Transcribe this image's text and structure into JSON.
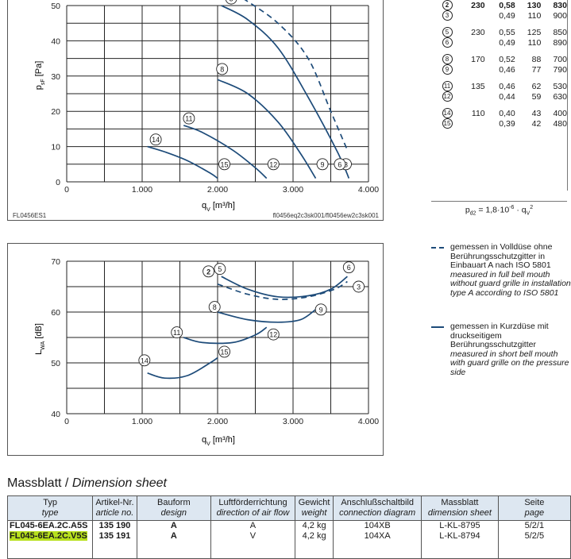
{
  "chart_data": [
    {
      "type": "line",
      "title": "",
      "xlabel": "qV [m³/h]",
      "ylabel": "psF [Pa]",
      "xlim": [
        0,
        4000
      ],
      "ylim": [
        0,
        50
      ],
      "x_tick_labels": [
        "0",
        "1.000",
        "2.000",
        "3.000",
        "4.000"
      ],
      "y_tick_labels": [
        "0",
        "10",
        "20",
        "30",
        "40",
        "50"
      ],
      "grid": true,
      "series": [
        {
          "marker": "3",
          "style": "dashed",
          "x": [
            2340,
            2800,
            3200,
            3500,
            3720
          ],
          "y": [
            52,
            45,
            35,
            20,
            9
          ]
        },
        {
          "marker": "5",
          "style": "solid",
          "x": [
            2050,
            2400,
            2800,
            3200,
            3600,
            3740
          ],
          "y": [
            50,
            46,
            38,
            24,
            8,
            1
          ]
        },
        {
          "marker": "8",
          "style": "solid",
          "x": [
            2000,
            2400,
            2800,
            3100,
            3300
          ],
          "y": [
            29,
            25,
            17,
            8,
            1
          ]
        },
        {
          "marker": "11",
          "style": "solid",
          "x": [
            1550,
            1800,
            2200,
            2500,
            2650
          ],
          "y": [
            16,
            14,
            9,
            4,
            1
          ]
        },
        {
          "marker": "14",
          "style": "solid",
          "x": [
            1070,
            1300,
            1600,
            1900,
            2000
          ],
          "y": [
            10,
            8.5,
            6,
            2.5,
            1
          ]
        }
      ],
      "markers": [
        "2",
        "3",
        "5",
        "6",
        "8",
        "9",
        "11",
        "12",
        "14",
        "15"
      ],
      "footer_left": "FL0456ES1",
      "footer_right": "fl0456eq2c3sk001/fl0456ew2c3sk001"
    },
    {
      "type": "line",
      "title": "",
      "xlabel": "qV [m³/h]",
      "ylabel": "LWA [dB]",
      "xlim": [
        0,
        4000
      ],
      "ylim": [
        40,
        70
      ],
      "x_tick_labels": [
        "0",
        "1.000",
        "2.000",
        "3.000",
        "4.000"
      ],
      "y_tick_labels": [
        "40",
        "50",
        "60",
        "70"
      ],
      "grid": true,
      "series": [
        {
          "marker": "3",
          "style": "dashed",
          "x": [
            2000,
            2400,
            2800,
            3200,
            3550,
            3720
          ],
          "y": [
            65.5,
            63.5,
            62.5,
            63,
            64.5,
            66
          ]
        },
        {
          "marker": "5",
          "style": "solid",
          "x": [
            2050,
            2400,
            2800,
            3200,
            3500,
            3720
          ],
          "y": [
            67,
            64.5,
            63,
            63.2,
            64.5,
            67
          ]
        },
        {
          "marker": "8",
          "style": "solid",
          "x": [
            2000,
            2400,
            2800,
            3100,
            3300
          ],
          "y": [
            60,
            58.5,
            58,
            58.5,
            60.5
          ]
        },
        {
          "marker": "11",
          "style": "solid",
          "x": [
            1550,
            1800,
            2200,
            2500,
            2650
          ],
          "y": [
            55,
            54,
            54,
            55.5,
            57
          ]
        },
        {
          "marker": "14",
          "style": "solid",
          "x": [
            1070,
            1300,
            1600,
            1900,
            2000
          ],
          "y": [
            48,
            47,
            47.5,
            50,
            51
          ]
        }
      ],
      "markers": [
        "2",
        "3",
        "5",
        "6",
        "8",
        "9",
        "11",
        "12",
        "14",
        "15"
      ]
    }
  ],
  "operating_points": {
    "rows": [
      {
        "id": "2",
        "v": "230",
        "a": "0,58",
        "w": "130",
        "rpm": "830",
        "bold": true
      },
      {
        "id": "3",
        "v": "",
        "a": "0,49",
        "w": "110",
        "rpm": "900",
        "bold": false
      },
      {
        "id": "5",
        "v": "230",
        "a": "0,55",
        "w": "125",
        "rpm": "850",
        "bold": false
      },
      {
        "id": "6",
        "v": "",
        "a": "0,49",
        "w": "110",
        "rpm": "890",
        "bold": false
      },
      {
        "id": "8",
        "v": "170",
        "a": "0,52",
        "w": "88",
        "rpm": "700",
        "bold": false
      },
      {
        "id": "9",
        "v": "",
        "a": "0,46",
        "w": "77",
        "rpm": "790",
        "bold": false
      },
      {
        "id": "11",
        "v": "135",
        "a": "0,46",
        "w": "62",
        "rpm": "530",
        "bold": false
      },
      {
        "id": "12",
        "v": "",
        "a": "0,44",
        "w": "59",
        "rpm": "630",
        "bold": false
      },
      {
        "id": "14",
        "v": "110",
        "a": "0,40",
        "w": "43",
        "rpm": "400",
        "bold": false
      },
      {
        "id": "15",
        "v": "",
        "a": "0,39",
        "w": "42",
        "rpm": "480",
        "bold": false
      }
    ],
    "formula": "pd2 = 1,8·10-6 · qV2"
  },
  "legend": {
    "dashed": {
      "de": "gemessen in Volldüse ohne Berührungsschutzgitter in Einbauart A nach ISO 5801",
      "en": "measured in full bell mouth without guard grille in installation type A according to ISO 5801"
    },
    "solid": {
      "de": "gemessen in Kurzdüse mit druckseitigem Berührungsschutzgitter",
      "en": "measured in short bell mouth with guard grille on the pressure side"
    }
  },
  "dimension_sheet": {
    "title_de": "Massblatt / ",
    "title_en": "Dimension sheet",
    "headers": [
      {
        "de": "Typ",
        "en": "type"
      },
      {
        "de": "Artikel-Nr.",
        "en": "article no."
      },
      {
        "de": "Bauform",
        "en": "design"
      },
      {
        "de": "Luftförderrichtung",
        "en": "direction of air flow"
      },
      {
        "de": "Gewicht",
        "en": "weight"
      },
      {
        "de": "Anschlußschaltbild",
        "en": "connection diagram"
      },
      {
        "de": "Massblatt",
        "en": "dimension sheet"
      },
      {
        "de": "Seite",
        "en": "page"
      }
    ],
    "rows": [
      {
        "type": "FL045-6EA.2C.A5S",
        "article": "135 190",
        "design": "A",
        "airflow": "A",
        "weight": "4,2 kg",
        "diagram": "104XB",
        "sheet": "L-KL-8795",
        "page": "5/2/1"
      },
      {
        "type": "FL045-6EA.2C.V5S",
        "article": "135 191",
        "design": "A",
        "airflow": "V",
        "weight": "4,2 kg",
        "diagram": "104XA",
        "sheet": "L-KL-8794",
        "page": "5/2/5",
        "highlight": true
      }
    ]
  }
}
